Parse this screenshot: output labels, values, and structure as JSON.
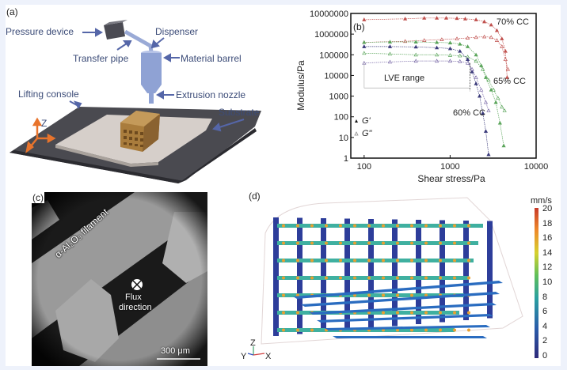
{
  "figure": {
    "background": "#eef2fb",
    "panels": {
      "a": {
        "label": "(a)",
        "callouts": {
          "pressure_device": "Pressure device",
          "dispenser": "Dispenser",
          "transfer_pipe": "Transfer pipe",
          "material_barrel": "Material barrel",
          "extrusion_nozzle": "Extrusion nozzle",
          "lifting_console": "Lifting console",
          "substrate": "Substrate"
        },
        "axis_label": "Z",
        "colors": {
          "callout": "#3c4c78",
          "arrow": "#5566a8",
          "barrel": "#8fa2d4",
          "platform": "#4a4a50",
          "substrate": "#d6cfca",
          "lattice": "#a97c3c",
          "axis": "#e8742c"
        }
      },
      "b": {
        "label": "(b)"
      },
      "c": {
        "label": "(c)",
        "filament_label": "α-Al₂O₃ filament",
        "flux_label_line1": "Flux",
        "flux_label_line2": "direction",
        "scale_bar": "300 μm"
      },
      "d": {
        "label": "(d)",
        "colorbar_unit": "mm/s",
        "colorbar_ticks": [
          "20",
          "18",
          "16",
          "14",
          "12",
          "10",
          "8",
          "6",
          "4",
          "2",
          "0"
        ],
        "axes_triad": {
          "z": "Z",
          "y": "Y",
          "x": "X"
        }
      }
    }
  },
  "chart_data": {
    "type": "scatter",
    "title": "",
    "xlabel": "Shear stress/Pa",
    "ylabel": "Modulus/Pa",
    "xscale": "log",
    "yscale": "log",
    "xlim": [
      70,
      10000
    ],
    "ylim": [
      1,
      10000000
    ],
    "xticks": [
      "100",
      "1000",
      "10000"
    ],
    "yticks": [
      "10000000",
      "1000000",
      "100000",
      "10000",
      "1000",
      "100",
      "10",
      "1"
    ],
    "grid": false,
    "legend": [
      {
        "marker": "filled-triangle",
        "label": "G'"
      },
      {
        "marker": "open-triangle",
        "label": "G\""
      }
    ],
    "annotations": [
      {
        "text": "70% CC",
        "color": "#c0504d"
      },
      {
        "text": "65% CC",
        "color": "#5aa55a"
      },
      {
        "text": "60% CC",
        "color": "#3a3a7a"
      },
      {
        "text": "LVE range",
        "color": "#333333"
      }
    ],
    "series": [
      {
        "name": "70% CC G'",
        "color": "#c0504d",
        "filled": true,
        "x": [
          100,
          300,
          500,
          700,
          900,
          1200,
          1500,
          2000,
          2500,
          3000,
          3500,
          4000,
          4400,
          4600
        ],
        "y": [
          5000000,
          5500000,
          6000000,
          6000000,
          6000000,
          5800000,
          5500000,
          5000000,
          4000000,
          2800000,
          1500000,
          600000,
          150000,
          8000
        ]
      },
      {
        "name": "70% CC G\"",
        "color": "#c0504d",
        "filled": false,
        "x": [
          100,
          300,
          500,
          800,
          1200,
          1600,
          2000,
          2500,
          3000,
          3500,
          4000,
          4400,
          4700
        ],
        "y": [
          400000,
          450000,
          500000,
          550000,
          600000,
          650000,
          700000,
          750000,
          700000,
          500000,
          250000,
          60000,
          20000
        ]
      },
      {
        "name": "65% CC G'",
        "color": "#5aa55a",
        "filled": true,
        "x": [
          100,
          200,
          400,
          700,
          1000,
          1300,
          1600,
          2000,
          2300,
          2600,
          3000,
          3400,
          3800,
          4200
        ],
        "y": [
          400000,
          420000,
          420000,
          400000,
          380000,
          330000,
          250000,
          100000,
          30000,
          8000,
          2000,
          500,
          50,
          4
        ]
      },
      {
        "name": "65% CC G\"",
        "color": "#5aa55a",
        "filled": false,
        "x": [
          100,
          200,
          400,
          700,
          1000,
          1300,
          1600,
          2000,
          2400,
          2800,
          3200,
          3600,
          4000,
          4300
        ],
        "y": [
          120000,
          110000,
          100000,
          100000,
          95000,
          90000,
          80000,
          50000,
          20000,
          6000,
          2000,
          800,
          300,
          200
        ]
      },
      {
        "name": "60% CC G'",
        "color": "#3a3a7a",
        "filled": true,
        "x": [
          100,
          200,
          400,
          700,
          1000,
          1300,
          1600,
          1800,
          2000,
          2200,
          2400,
          2600,
          2800
        ],
        "y": [
          250000,
          250000,
          240000,
          220000,
          200000,
          150000,
          60000,
          15000,
          4000,
          1000,
          150,
          20,
          1.5
        ]
      },
      {
        "name": "60% CC G\"",
        "color": "#7a6aa8",
        "filled": false,
        "x": [
          100,
          200,
          400,
          700,
          1000,
          1300,
          1600,
          1800,
          2000,
          2300,
          2600,
          2800
        ],
        "y": [
          40000,
          45000,
          50000,
          50000,
          50000,
          48000,
          40000,
          20000,
          8000,
          2000,
          500,
          200
        ]
      }
    ],
    "lve_range": {
      "x_start": 100,
      "x_end": 1700,
      "y_level": 5000
    }
  }
}
